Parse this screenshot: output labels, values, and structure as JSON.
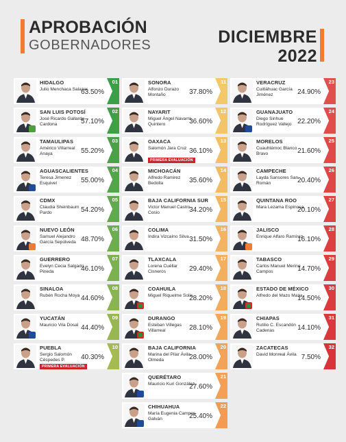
{
  "header": {
    "title_line1": "APROBACIÓN",
    "title_line2": "GOBERNADORES",
    "month": "DICIEMBRE",
    "year": "2022",
    "accent_color": "#f07b33"
  },
  "chart_data": {
    "type": "table",
    "title": "APROBACIÓN GOBERNADORES",
    "period": "DICIEMBRE 2022",
    "rows": [
      {
        "rank": "01",
        "state": "HIDALGO",
        "governor": "Julio Menchaca Salazar",
        "value": 63.5,
        "label": "63.50%",
        "color": "#3a9f49"
      },
      {
        "rank": "02",
        "state": "SAN LUIS POTOSÍ",
        "governor": "José Ricardo Gallardo Cardona",
        "value": 57.1,
        "label": "57.10%",
        "color": "#3f9f45",
        "party": "pvem"
      },
      {
        "rank": "03",
        "state": "TAMAULIPAS",
        "governor": "Américo Villarreal Anaya",
        "value": 55.2,
        "label": "55.20%",
        "color": "#4aa14a"
      },
      {
        "rank": "04",
        "state": "AGUASCALIENTES",
        "governor": "Teresa Jimenez Esquivel",
        "value": 55.0,
        "label": "55.00%",
        "color": "#55a44b",
        "party": "pan"
      },
      {
        "rank": "05",
        "state": "CDMX",
        "governor": "Claudia Sheinbaum Pardo",
        "value": 54.2,
        "label": "54.20%",
        "color": "#62a84c"
      },
      {
        "rank": "06",
        "state": "NUEVO LEÓN",
        "governor": "Samuel Alejandro García Sepúlveda",
        "value": 48.7,
        "label": "48.70%",
        "color": "#6fac4d",
        "party": "mc"
      },
      {
        "rank": "07",
        "state": "GUERRERO",
        "governor": "Evelyn Cecia Salgado Pineda",
        "value": 46.1,
        "label": "46.10%",
        "color": "#7db04e"
      },
      {
        "rank": "08",
        "state": "SINALOA",
        "governor": "Rubén Rocha Moya",
        "value": 44.6,
        "label": "44.60%",
        "color": "#8ab44f"
      },
      {
        "rank": "09",
        "state": "YUCATÁN",
        "governor": "Mauricio Vila Dosal",
        "value": 44.4,
        "label": "44.40%",
        "color": "#98b750",
        "party": "pan"
      },
      {
        "rank": "10",
        "state": "PUEBLA",
        "governor": "Sergio Salomón Céspedes P.",
        "value": 40.3,
        "label": "40.30%",
        "color": "#a6ba52",
        "badge": "PRIMERA EVALUACIÓN"
      },
      {
        "rank": "11",
        "state": "SONORA",
        "governor": "Alfonzo Durazo Montaño",
        "value": 37.8,
        "label": "37.80%",
        "color": "#f3c86a"
      },
      {
        "rank": "12",
        "state": "NAYARIT",
        "governor": "Miguel Ángel Navarro Quintero",
        "value": 36.6,
        "label": "36.60%",
        "color": "#f3c468"
      },
      {
        "rank": "13",
        "state": "OAXACA",
        "governor": "Salomón Jara Cruz",
        "value": 36.1,
        "label": "36.10%",
        "color": "#f3c066",
        "badge": "PRIMERA EVALUACIÓN"
      },
      {
        "rank": "14",
        "state": "MICHOACÁN",
        "governor": "Alfredo Ramirez Bedolla",
        "value": 35.6,
        "label": "35.60%",
        "color": "#f3bb64"
      },
      {
        "rank": "15",
        "state": "BAJA CALIFORNIA SUR",
        "governor": "Victor Manuel Castro Cosio",
        "value": 34.2,
        "label": "34.20%",
        "color": "#f3b762"
      },
      {
        "rank": "16",
        "state": "COLIMA",
        "governor": "Indira Vizcaíno Silva",
        "value": 31.5,
        "label": "31.50%",
        "color": "#f3b360"
      },
      {
        "rank": "17",
        "state": "TLAXCALA",
        "governor": "Lorena Cuéllar Cisneros",
        "value": 29.4,
        "label": "29.40%",
        "color": "#f3af5e"
      },
      {
        "rank": "18",
        "state": "COAHUILA",
        "governor": "Miguel Riquelme Solís",
        "value": 28.2,
        "label": "28.20%",
        "color": "#f3ab5c",
        "party": "pri"
      },
      {
        "rank": "19",
        "state": "DURANGO",
        "governor": "Esteban Villegas Villarreal",
        "value": 28.1,
        "label": "28.10%",
        "color": "#f3a75a",
        "party": "pri"
      },
      {
        "rank": "20",
        "state": "BAJA CALIFORNIA",
        "governor": "Marina del Pilar Ávila Olmeda",
        "value": 28.0,
        "label": "28.00%",
        "color": "#f3a358"
      },
      {
        "rank": "21",
        "state": "QUERÉTARO",
        "governor": "Mauricio Kuri González",
        "value": 27.6,
        "label": "27.60%",
        "color": "#f39f56",
        "party": "pan"
      },
      {
        "rank": "22",
        "state": "CHIHUAHUA",
        "governor": "María Eugenia Campos Galván",
        "value": 25.4,
        "label": "25.40%",
        "color": "#f39b54",
        "party": "pan"
      },
      {
        "rank": "23",
        "state": "VERACRUZ",
        "governor": "Cuitláhuac García Jiménez",
        "value": 24.9,
        "label": "24.90%",
        "color": "#e0504c"
      },
      {
        "rank": "24",
        "state": "GUANAJUATO",
        "governor": "Diego Sinhue Rodríguez Vallejo",
        "value": 22.2,
        "label": "22.20%",
        "color": "#e04d4a",
        "party": "pan"
      },
      {
        "rank": "25",
        "state": "MORELOS",
        "governor": "Cuauhtémoc Blanco Bravo",
        "value": 21.6,
        "label": "21.60%",
        "color": "#df4a48"
      },
      {
        "rank": "26",
        "state": "CAMPECHE",
        "governor": "Layda Sansores San Román",
        "value": 20.4,
        "label": "20.40%",
        "color": "#de4746"
      },
      {
        "rank": "27",
        "state": "QUINTANA ROO",
        "governor": "Mara Lezama Espinosa",
        "value": 20.1,
        "label": "20.10%",
        "color": "#dd4444"
      },
      {
        "rank": "28",
        "state": "JALISCO",
        "governor": "Enrique Alfaro Ramírez",
        "value": 16.1,
        "label": "16.10%",
        "color": "#dc4142",
        "party": "mc"
      },
      {
        "rank": "29",
        "state": "TABASCO",
        "governor": "Carlos Manuel Merino Campos",
        "value": 14.7,
        "label": "14.70%",
        "color": "#db3e40"
      },
      {
        "rank": "30",
        "state": "ESTADO DE MÉXICO",
        "governor": "Alfredo del Mazo Maza",
        "value": 14.5,
        "label": "14.50%",
        "color": "#da3b3e",
        "party": "pri"
      },
      {
        "rank": "31",
        "state": "CHIAPAS",
        "governor": "Rutilio C. Escandón Cadenas",
        "value": 14.1,
        "label": "14.10%",
        "color": "#d9383c"
      },
      {
        "rank": "32",
        "state": "ZACATECAS",
        "governor": "David Monreal Ávila",
        "value": 7.5,
        "label": "7.50%",
        "color": "#d8353a"
      }
    ]
  }
}
